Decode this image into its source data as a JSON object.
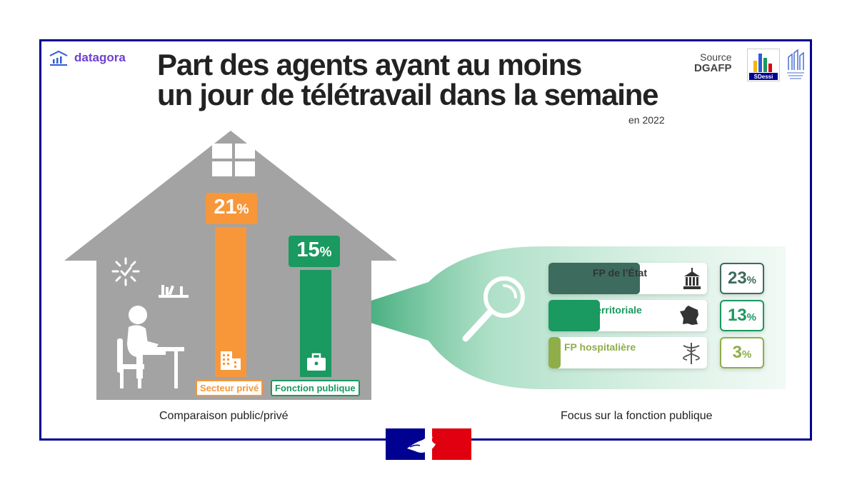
{
  "brand": {
    "name": "datagora"
  },
  "title": {
    "line1": "Part des agents ayant au moins",
    "line2": "un jour de télétravail dans la semaine",
    "subtitle": "en 2022"
  },
  "source": {
    "label": "Source",
    "org": "DGAFP",
    "logo_text": "SDessi"
  },
  "colors": {
    "prive": "#f7973a",
    "public": "#1a9960",
    "etat": "#3d6b5e",
    "territoriale": "#1a9960",
    "hospitaliere": "#8fae4a",
    "house": "#a3a3a3",
    "frame": "#000091"
  },
  "chart_data": [
    {
      "type": "bar",
      "categories": [
        "Secteur privé",
        "Fonction publique"
      ],
      "values": [
        21,
        15
      ],
      "value_labels": [
        "21",
        "15"
      ],
      "unit": "%",
      "caption": "Comparaison public/privé"
    },
    {
      "type": "bar",
      "categories": [
        "FP de l’État",
        "FP territoriale",
        "FP hospitalière"
      ],
      "values": [
        23,
        13,
        3
      ],
      "value_labels": [
        "23",
        "13",
        "3"
      ],
      "unit": "%",
      "caption": "Focus sur la fonction publique"
    }
  ],
  "icons": [
    "datagora-logo-icon",
    "window-icon",
    "sun-icon",
    "books-icon",
    "person-laptop-icon",
    "building-icon",
    "briefcase-icon",
    "magnifier-icon",
    "government-building-icon",
    "france-map-icon",
    "caduceus-icon",
    "marianne-logo-icon"
  ]
}
